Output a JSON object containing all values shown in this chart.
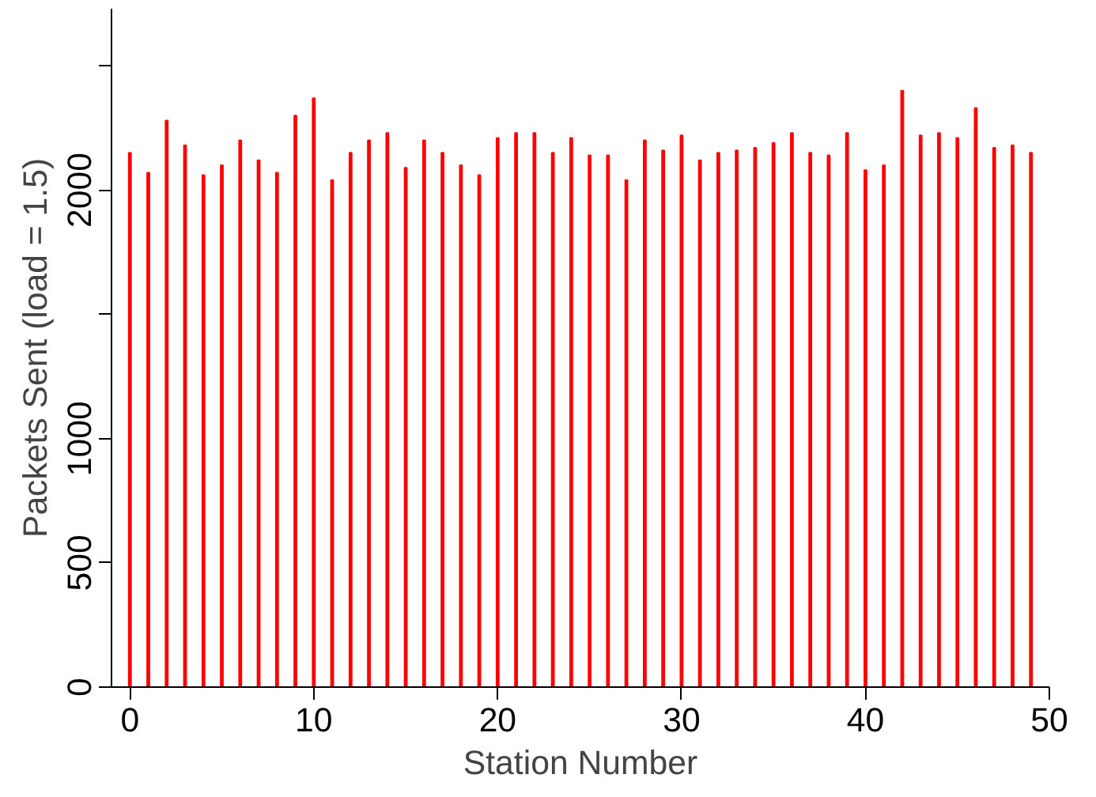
{
  "chart_data": {
    "type": "bar",
    "xlabel": "Station Number",
    "ylabel": "Packets Sent (load = 1.5)",
    "x": [
      0,
      1,
      2,
      3,
      4,
      5,
      6,
      7,
      8,
      9,
      10,
      11,
      12,
      13,
      14,
      15,
      16,
      17,
      18,
      19,
      20,
      21,
      22,
      23,
      24,
      25,
      26,
      27,
      28,
      29,
      30,
      31,
      32,
      33,
      34,
      35,
      36,
      37,
      38,
      39,
      40,
      41,
      42,
      43,
      44,
      45,
      46,
      47,
      48,
      49
    ],
    "values": [
      2150,
      2070,
      2280,
      2180,
      2060,
      2100,
      2200,
      2120,
      2070,
      2300,
      2370,
      2040,
      2150,
      2200,
      2230,
      2090,
      2200,
      2150,
      2100,
      2060,
      2210,
      2230,
      2230,
      2150,
      2210,
      2140,
      2140,
      2040,
      2200,
      2160,
      2220,
      2120,
      2150,
      2160,
      2170,
      2190,
      2230,
      2150,
      2140,
      2230,
      2080,
      2100,
      2400,
      2220,
      2230,
      2210,
      2330,
      2170,
      2180,
      2150
    ],
    "color": "#ff0000",
    "xlim": [
      -1,
      50
    ],
    "ylim": [
      0,
      2730
    ],
    "xticks": [
      0,
      10,
      20,
      30,
      40,
      50
    ],
    "yticks": [
      0,
      500,
      1000,
      {
        "value": 1500,
        "label": null
      },
      2000,
      {
        "value": 2500,
        "label": null
      }
    ],
    "grid": false
  }
}
